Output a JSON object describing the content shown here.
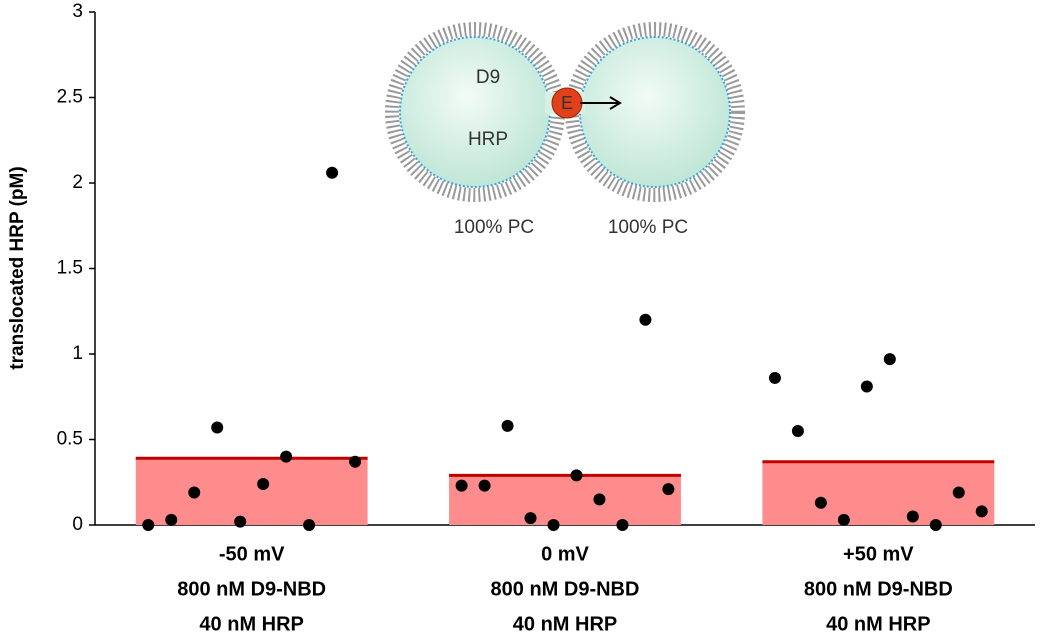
{
  "chart_data": {
    "type": "bar",
    "y_label": "translocated HRP (pM)",
    "categories": [
      [
        "-50 mV",
        "800 nM D9-NBD",
        "40 nM HRP"
      ],
      [
        "0 mV",
        "800 nM D9-NBD",
        "40 nM HRP"
      ],
      [
        "+50 mV",
        "800 nM D9-NBD",
        "40 nM HRP"
      ]
    ],
    "values": [
      0.39,
      0.29,
      0.37
    ],
    "color": "#ff8c8c",
    "line_color": "#c00000",
    "points": {
      "color": "#000000",
      "values": [
        [
          0,
          0.03,
          0.19,
          0.57,
          0.02,
          0.24,
          0.4,
          0,
          2.06,
          0.37
        ],
        [
          0.23,
          0.23,
          0.58,
          0.04,
          0,
          0.29,
          0.15,
          0,
          1.2,
          0.21
        ],
        [
          0.86,
          0.55,
          0.13,
          0.03,
          0.81,
          0.97,
          0.05,
          0,
          0.19,
          0.08
        ]
      ]
    },
    "ylim": [
      0,
      3
    ],
    "yticks": [
      0,
      0.5,
      1,
      1.5,
      2,
      2.5,
      3
    ],
    "annotations": {
      "left_top": "D9",
      "left_bottom": "HRP",
      "pore": "E",
      "left_caption": "100% PC",
      "right_caption": "100% PC"
    }
  }
}
